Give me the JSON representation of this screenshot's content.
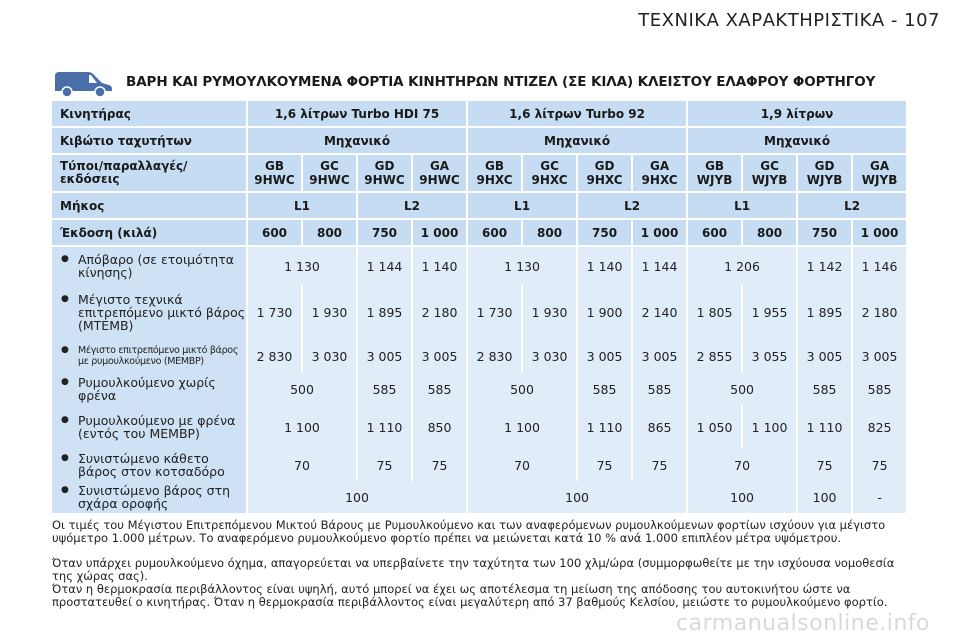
{
  "page_header": "ΤΕΧΝΙΚΑ ΧΑΡΑΚΤΗΡΙΣΤΙΚΑ - 107",
  "section_title": "ΒΑΡΗ ΚΑΙ ΡΥΜΟΥΛΚΟΥΜΕΝΑ ΦΟΡΤΙΑ ΚΙΝΗΤΗΡΩΝ ΝΤΙΖΕΛ (ΣΕ ΚΙΛΑ) ΚΛΕΙΣΤΟΥ ΕΛΑΦΡΟΥ ΦΟΡΤΗΓΟΥ",
  "icons": {
    "van": "van-icon"
  },
  "colors": {
    "header_row": "#c5dcf2",
    "body_row": "#e0edf9",
    "label_col": "#cfe1f4"
  },
  "table": {
    "engine": {
      "label": "Κινητήρας",
      "values": [
        "1,6 λίτρων Turbo HDI 75",
        "1,6 λίτρων Turbo 92",
        "1,9 λίτρων"
      ]
    },
    "gearbox": {
      "label": "Κιβώτιο ταχυτήτων",
      "values": [
        "Μηχανικό",
        "Μηχανικό",
        "Μηχανικό"
      ]
    },
    "types": {
      "label": "Τύποι/παραλλαγές/ εκδόσεις",
      "values": [
        [
          "GB",
          "9HWC"
        ],
        [
          "GC",
          "9HWC"
        ],
        [
          "GD",
          "9HWC"
        ],
        [
          "GA",
          "9HWC"
        ],
        [
          "GB",
          "9HXC"
        ],
        [
          "GC",
          "9HXC"
        ],
        [
          "GD",
          "9HXC"
        ],
        [
          "GA",
          "9HXC"
        ],
        [
          "GB",
          "WJYB"
        ],
        [
          "GC",
          "WJYB"
        ],
        [
          "GD",
          "WJYB"
        ],
        [
          "GA",
          "WJYB"
        ]
      ]
    },
    "length": {
      "label": "Μήκος",
      "values": [
        "L1",
        "L2",
        "L1",
        "L2",
        "L1",
        "L2"
      ]
    },
    "version": {
      "label": "Έκδοση (κιλά)",
      "values": [
        "600",
        "800",
        "750",
        "1 000",
        "600",
        "800",
        "750",
        "1 000",
        "600",
        "800",
        "750",
        "1 000"
      ]
    },
    "rows": [
      {
        "label": "Απόβαρο (σε ετοιμότητα κίνησης)",
        "cells": [
          {
            "v": "1 130"
          },
          {
            "v": "1 144"
          },
          {
            "v": "1 140"
          },
          {
            "v": "1 130"
          },
          {
            "v": "1 140"
          },
          {
            "v": "1 144"
          },
          {
            "v": "1 206"
          },
          {
            "v": "1 142"
          },
          {
            "v": "1 146"
          }
        ]
      },
      {
        "label": "Μέγιστο τεχνικά επιτρεπόμενο μικτό βάρος (ΜΤΕΜΒ)",
        "cells": [
          {
            "v": "1 730"
          },
          {
            "v": "1 930"
          },
          {
            "v": "1 895"
          },
          {
            "v": "2 180"
          },
          {
            "v": "1 730"
          },
          {
            "v": "1 930"
          },
          {
            "v": "1 900"
          },
          {
            "v": "2 140"
          },
          {
            "v": "1 805"
          },
          {
            "v": "1 955"
          },
          {
            "v": "1 895"
          },
          {
            "v": "2 180"
          }
        ]
      },
      {
        "label": "Μέγιστο επιτρεπόμενο μικτό βάρος με ρυμουλκούμενο (ΜΕΜΒΡ)",
        "cells": [
          {
            "v": "2 830"
          },
          {
            "v": "3 030"
          },
          {
            "v": "3 005"
          },
          {
            "v": "3 005"
          },
          {
            "v": "2 830"
          },
          {
            "v": "3 030"
          },
          {
            "v": "3 005"
          },
          {
            "v": "3 005"
          },
          {
            "v": "2 855"
          },
          {
            "v": "3 055"
          },
          {
            "v": "3 005"
          },
          {
            "v": "3 005"
          }
        ]
      },
      {
        "label": "Ρυμουλκούμενο χωρίς φρένα",
        "cells": [
          {
            "v": "500"
          },
          {
            "v": "585"
          },
          {
            "v": "585"
          },
          {
            "v": "500"
          },
          {
            "v": "585"
          },
          {
            "v": "585"
          },
          {
            "v": "500"
          },
          {
            "v": "585"
          },
          {
            "v": "585"
          }
        ]
      },
      {
        "label": "Ρυμουλκούμενο με φρένα (εντός του ΜΕΜΒΡ)",
        "cells": [
          {
            "v": "1 100"
          },
          {
            "v": "1 110"
          },
          {
            "v": "850"
          },
          {
            "v": "1 100"
          },
          {
            "v": "1 110"
          },
          {
            "v": "865"
          },
          {
            "v": "1 050"
          },
          {
            "v": "1 100"
          },
          {
            "v": "1 110"
          },
          {
            "v": "825"
          }
        ]
      },
      {
        "label": "Συνιστώμενο κάθετο βάρος στον κοτσαδόρο",
        "cells": [
          {
            "v": "70"
          },
          {
            "v": "75"
          },
          {
            "v": "75"
          },
          {
            "v": "70"
          },
          {
            "v": "75"
          },
          {
            "v": "75"
          },
          {
            "v": "70"
          },
          {
            "v": "75"
          },
          {
            "v": "75"
          }
        ]
      },
      {
        "label": "Συνιστώμενο βάρος στη σχάρα οροφής",
        "cells": [
          {
            "v": "100"
          },
          {
            "v": "100"
          },
          {
            "v": "100"
          },
          {
            "v": "100"
          },
          {
            "v": "-"
          }
        ]
      }
    ]
  },
  "notes": [
    "Οι τιμές του Μέγιστου Επιτρεπόμενου Μικτού Βάρους με Ρυμουλκούμενο και των αναφερόμενων ρυμουλκούμενων φορτίων ισχύουν για μέγιστο υψόμετρο 1.000 μέτρων. Το αναφερόμενο ρυμουλκούμενο φορτίο πρέπει να μειώνεται κατά 10 % ανά 1.000 επιπλέον μέτρα υψόμετρου.",
    "Όταν υπάρχει ρυμουλκούμενο όχημα, απαγορεύεται να υπερβαίνετε την ταχύτητα των 100 χλμ/ώρα (συμμορφωθείτε με την ισχύουσα νομοθεσία της χώρας σας).",
    "Όταν η θερμοκρασία περιβάλλοντος είναι υψηλή, αυτό μπορεί να έχει ως αποτέλεσμα τη μείωση της απόδοσης του αυτοκινήτου ώστε να προστατευθεί ο κινητήρας. Όταν η θερμοκρασία περιβάλλοντος είναι μεγαλύτερη από 37 βαθμούς Κελσίου, μειώστε το ρυμουλκούμενο φορτίο."
  ],
  "watermark": "carmanualsonline.info"
}
